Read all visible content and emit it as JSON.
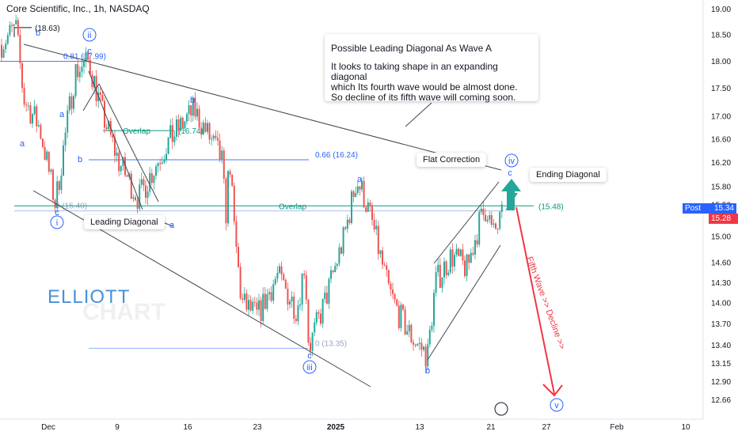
{
  "header": {
    "title": "Core Scientific, Inc., 1h, NASDAQ"
  },
  "notes": {
    "main_title": "Possible Leading Diagonal As Wave A",
    "main_lines": [
      "It looks to taking shape in an expanding diagonal",
      " which Its fourth wave would be almost done.",
      " So decline of its fifth wave will coming soon."
    ],
    "flat_correction": "Flat Correction",
    "ending_diagonal": "Ending Diagonal",
    "leading_diagonal": "Leading Diagonal",
    "fifth_wave": "Fifth Wave >> Decline >>"
  },
  "watermark": {
    "line1": "ELLIOTT",
    "line2": "CHART"
  },
  "price_tags": {
    "post_label": "Post",
    "post_value": "15.34",
    "last_value": "15.28"
  },
  "colors": {
    "up": "#26a69a",
    "down": "#ef5350",
    "fib": "#2962ff",
    "overlap": "#089981",
    "wave_label": "#2962ff",
    "fifth_arrow": "#f23645"
  },
  "chart_data": {
    "type": "candlestick",
    "title": "Core Scientific, Inc., 1h, NASDAQ",
    "x_tick_labels": [
      "Dec",
      "9",
      "16",
      "23",
      "2025",
      "13",
      "21",
      "27",
      "Feb",
      "10"
    ],
    "y_ticks": [
      19.0,
      18.5,
      18.0,
      17.5,
      17.0,
      16.6,
      16.2,
      15.8,
      15.5,
      15.0,
      14.6,
      14.3,
      14.0,
      13.7,
      13.4,
      13.15,
      12.9,
      12.66
    ],
    "price_axis": "logarithmic",
    "ylim": [
      12.55,
      19.2
    ],
    "anchor_points": [
      18.3,
      18.63,
      17.3,
      16.8,
      15.5,
      17.8,
      17.99,
      17.0,
      16.2,
      15.6,
      16.5,
      17.1,
      16.24,
      15.3,
      16.3,
      15.2,
      14.0,
      13.8,
      14.4,
      13.9,
      14.6,
      13.35,
      14.0,
      15.0,
      15.9,
      15.7,
      15.2,
      14.2,
      13.8,
      13.5,
      13.25,
      14.3,
      14.7,
      14.5,
      15.2,
      15.48,
      15.0,
      15.34
    ],
    "fib_levels": [
      {
        "label": "0.81 (17.99)",
        "value": 17.99
      },
      {
        "label": "0.66 (16.24)",
        "value": 16.24
      },
      {
        "label": "0 (15.40)",
        "value": 15.4
      },
      {
        "label": "0 (13.35)",
        "value": 13.35
      }
    ],
    "horizontal_lines": [
      {
        "label": "(18.63)",
        "value": 18.63
      },
      {
        "label": "Overlap",
        "value": 16.74,
        "tag": "(16.74)"
      },
      {
        "label": "Overlap",
        "value": 15.48,
        "tag": "(15.48)"
      }
    ],
    "wave_labels": [
      {
        "text": "b"
      },
      {
        "text": "ii"
      },
      {
        "text": "c"
      },
      {
        "text": "a"
      },
      {
        "text": "a"
      },
      {
        "text": "b"
      },
      {
        "text": "b"
      },
      {
        "text": "c"
      },
      {
        "text": "i"
      },
      {
        "text": "a"
      },
      {
        "text": "a"
      },
      {
        "text": "c"
      },
      {
        "text": "iii"
      },
      {
        "text": "b"
      },
      {
        "text": "c"
      },
      {
        "text": "iv"
      },
      {
        "text": "v"
      }
    ],
    "last_price": 15.34,
    "post_price": 15.34
  }
}
